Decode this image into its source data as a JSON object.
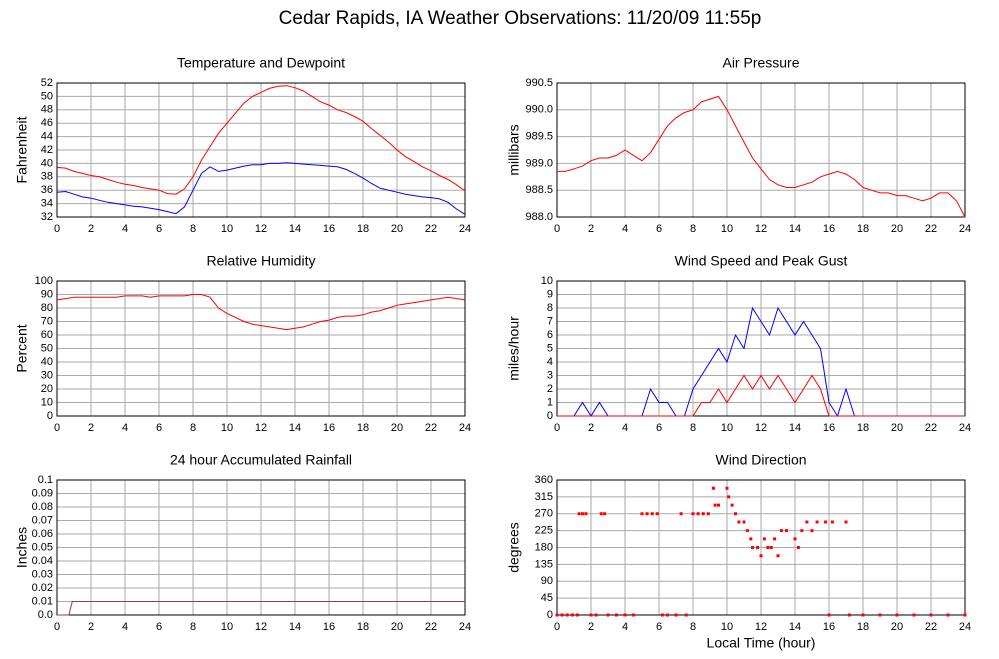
{
  "title": "Cedar Rapids, IA Weather Observations: 11/20/09 11:55p",
  "chart_data": [
    {
      "type": "line",
      "title": "Temperature and Dewpoint",
      "ylabel": "Fahrenheit",
      "x": [
        0,
        0.5,
        1,
        1.5,
        2,
        2.5,
        3,
        3.5,
        4,
        4.5,
        5,
        5.5,
        6,
        6.5,
        7,
        7.5,
        8,
        8.5,
        9,
        9.5,
        10,
        10.5,
        11,
        11.5,
        12,
        12.5,
        13,
        13.5,
        14,
        14.5,
        15,
        15.5,
        16,
        16.5,
        17,
        17.5,
        18,
        18.5,
        19,
        19.5,
        20,
        20.5,
        21,
        21.5,
        22,
        22.5,
        23,
        23.5,
        24
      ],
      "series": [
        {
          "color": "#ff0000",
          "values": [
            39.4,
            39.3,
            38.8,
            38.5,
            38.2,
            38,
            37.6,
            37.2,
            36.9,
            36.7,
            36.4,
            36.2,
            36,
            35.5,
            35.4,
            36.2,
            38,
            40.5,
            42.5,
            44.5,
            46,
            47.5,
            49,
            50,
            50.6,
            51.2,
            51.5,
            51.6,
            51.3,
            50.8,
            50,
            49.2,
            48.7,
            48,
            47.6,
            47,
            46.3,
            45.2,
            44.2,
            43.2,
            42,
            41,
            40.3,
            39.5,
            38.9,
            38.2,
            37.6,
            36.8,
            35.9
          ]
        },
        {
          "color": "#0000ff",
          "values": [
            35.7,
            35.8,
            35.4,
            35,
            34.8,
            34.5,
            34.2,
            34,
            33.8,
            33.6,
            33.5,
            33.3,
            33.1,
            32.8,
            32.5,
            33.5,
            36,
            38.5,
            39.5,
            38.8,
            39,
            39.3,
            39.6,
            39.8,
            39.8,
            40,
            40,
            40.1,
            40,
            39.9,
            39.8,
            39.7,
            39.6,
            39.5,
            39.1,
            38.5,
            37.8,
            37,
            36.3,
            36,
            35.7,
            35.4,
            35.2,
            35,
            34.9,
            34.7,
            34.2,
            33.2,
            32.4
          ]
        }
      ],
      "xlim": [
        0,
        24
      ],
      "xticks": [
        0,
        2,
        4,
        6,
        8,
        10,
        12,
        14,
        16,
        18,
        20,
        22,
        24
      ],
      "ylim": [
        32,
        52
      ],
      "yticks": [
        32,
        34,
        36,
        38,
        40,
        42,
        44,
        46,
        48,
        50,
        52
      ],
      "grid": true
    },
    {
      "type": "line",
      "title": "Air Pressure",
      "ylabel": "millibars",
      "x": [
        0,
        0.5,
        1,
        1.5,
        2,
        2.5,
        3,
        3.5,
        4,
        4.5,
        5,
        5.5,
        6,
        6.5,
        7,
        7.5,
        8,
        8.5,
        9,
        9.5,
        10,
        10.5,
        11,
        11.5,
        12,
        12.5,
        13,
        13.5,
        14,
        14.5,
        15,
        15.5,
        16,
        16.5,
        17,
        17.5,
        18,
        18.5,
        19,
        19.5,
        20,
        20.5,
        21,
        21.5,
        22,
        22.5,
        23,
        23.5,
        24
      ],
      "series": [
        {
          "color": "#ff0000",
          "values": [
            988.85,
            988.85,
            988.9,
            988.95,
            989.05,
            989.1,
            989.1,
            989.15,
            989.25,
            989.15,
            989.05,
            989.2,
            989.45,
            989.7,
            989.85,
            989.95,
            990.0,
            990.15,
            990.2,
            990.25,
            990.0,
            989.7,
            989.4,
            989.1,
            988.9,
            988.7,
            988.6,
            988.55,
            988.55,
            988.6,
            988.65,
            988.75,
            988.8,
            988.85,
            988.8,
            988.7,
            988.55,
            988.5,
            988.45,
            988.45,
            988.4,
            988.4,
            988.35,
            988.3,
            988.35,
            988.45,
            988.45,
            988.3,
            988.0
          ]
        }
      ],
      "xlim": [
        0,
        24
      ],
      "xticks": [
        0,
        2,
        4,
        6,
        8,
        10,
        12,
        14,
        16,
        18,
        20,
        22,
        24
      ],
      "ylim": [
        988.0,
        990.5
      ],
      "yticks": [
        {
          "value": 988,
          "label": "988.0"
        },
        988.5,
        {
          "value": 989,
          "label": "989.0"
        },
        989.5,
        {
          "value": 990,
          "label": "990.0"
        },
        990.5
      ],
      "grid": true
    },
    {
      "type": "line",
      "title": "Relative Humidity",
      "ylabel": "Percent",
      "x": [
        0,
        0.5,
        1,
        1.5,
        2,
        2.5,
        3,
        3.5,
        4,
        4.5,
        5,
        5.5,
        6,
        6.5,
        7,
        7.5,
        8,
        8.5,
        9,
        9.5,
        10,
        10.5,
        11,
        11.5,
        12,
        12.5,
        13,
        13.5,
        14,
        14.5,
        15,
        15.5,
        16,
        16.5,
        17,
        17.5,
        18,
        18.5,
        19,
        19.5,
        20,
        20.5,
        21,
        21.5,
        22,
        22.5,
        23,
        23.5,
        24
      ],
      "series": [
        {
          "color": "#ff0000",
          "values": [
            86,
            87,
            88,
            88,
            88,
            88,
            88,
            88,
            89,
            89,
            89,
            88,
            89,
            89,
            89,
            89,
            90,
            90,
            88,
            80,
            76,
            73,
            70,
            68,
            67,
            66,
            65,
            64,
            65,
            66,
            68,
            70,
            71,
            73,
            74,
            74,
            75,
            77,
            78,
            80,
            82,
            83,
            84,
            85,
            86,
            87,
            88,
            87,
            86
          ]
        }
      ],
      "xlim": [
        0,
        24
      ],
      "xticks": [
        0,
        2,
        4,
        6,
        8,
        10,
        12,
        14,
        16,
        18,
        20,
        22,
        24
      ],
      "ylim": [
        0,
        100
      ],
      "yticks": [
        0,
        10,
        20,
        30,
        40,
        50,
        60,
        70,
        80,
        90,
        100
      ],
      "grid": true
    },
    {
      "type": "line",
      "title": "Wind Speed and Peak Gust",
      "ylabel": "miles/hour",
      "x": [
        0,
        0.5,
        1,
        1.5,
        2,
        2.5,
        3,
        3.5,
        4,
        4.5,
        5,
        5.5,
        6,
        6.5,
        7,
        7.5,
        8,
        8.5,
        9,
        9.5,
        10,
        10.5,
        11,
        11.5,
        12,
        12.5,
        13,
        13.5,
        14,
        14.5,
        15,
        15.5,
        16,
        16.5,
        17,
        17.5,
        18,
        18.5,
        19,
        19.5,
        20,
        20.5,
        21,
        21.5,
        22,
        22.5,
        23,
        23.5,
        24
      ],
      "series": [
        {
          "color": "#0000ff",
          "values": [
            0,
            0,
            0,
            1,
            0,
            1,
            0,
            0,
            0,
            0,
            0,
            2,
            1,
            1,
            0,
            0,
            2,
            3,
            4,
            5,
            4,
            6,
            5,
            8,
            7,
            6,
            8,
            7,
            6,
            7,
            6,
            5,
            1,
            0,
            2,
            0,
            0,
            0,
            0,
            0,
            0,
            0,
            0,
            0,
            0,
            0,
            0,
            0,
            0
          ]
        },
        {
          "color": "#ff0000",
          "values": [
            0,
            0,
            0,
            0,
            0,
            0,
            0,
            0,
            0,
            0,
            0,
            0,
            0,
            0,
            0,
            0,
            0,
            1,
            1,
            2,
            1,
            2,
            3,
            2,
            3,
            2,
            3,
            2,
            1,
            2,
            3,
            2,
            0,
            0,
            0,
            0,
            0,
            0,
            0,
            0,
            0,
            0,
            0,
            0,
            0,
            0,
            0,
            0,
            0
          ]
        }
      ],
      "xlim": [
        0,
        24
      ],
      "xticks": [
        0,
        2,
        4,
        6,
        8,
        10,
        12,
        14,
        16,
        18,
        20,
        22,
        24
      ],
      "ylim": [
        0,
        10
      ],
      "yticks": [
        0,
        1,
        2,
        3,
        4,
        5,
        6,
        7,
        8,
        9,
        10
      ],
      "grid": true
    },
    {
      "type": "line",
      "title": "24 hour Accumulated Rainfall",
      "ylabel": "Inches",
      "x": [
        0,
        0.7,
        0.9,
        24
      ],
      "series": [
        {
          "color": "#993366",
          "values": [
            0,
            0,
            0.01,
            0.01
          ]
        }
      ],
      "xlim": [
        0,
        24
      ],
      "xticks": [
        0,
        2,
        4,
        6,
        8,
        10,
        12,
        14,
        16,
        18,
        20,
        22,
        24
      ],
      "ylim": [
        0,
        0.1
      ],
      "yticks": [
        {
          "value": 0,
          "label": "0.0"
        },
        0.01,
        0.02,
        0.03,
        0.04,
        0.05,
        0.06,
        0.07,
        0.08,
        0.09,
        0.1
      ],
      "grid": true
    },
    {
      "type": "scatter",
      "title": "Wind Direction",
      "ylabel": "degrees",
      "xlabel": "Local Time (hour)",
      "color": "#ff0000",
      "x": [
        0,
        0.3,
        0.6,
        0.9,
        1.2,
        1.3,
        1.5,
        1.7,
        2,
        2.3,
        2.6,
        2.8,
        3,
        3.5,
        4,
        4.5,
        5,
        5.3,
        5.6,
        5.9,
        6.2,
        6.5,
        7,
        7.3,
        7.6,
        8,
        8.3,
        8.6,
        8.9,
        9.2,
        9.3,
        9.5,
        10,
        10.1,
        10.3,
        10.5,
        10.7,
        11,
        11.2,
        11.4,
        11.5,
        11.8,
        12,
        12.2,
        12.4,
        12.6,
        12.8,
        13,
        13.2,
        13.5,
        14,
        14.2,
        14.4,
        14.7,
        15,
        15.3,
        15.8,
        16,
        16.2,
        17,
        17.2,
        18,
        19,
        20,
        21,
        22,
        23,
        24
      ],
      "values": [
        0,
        0,
        0,
        0,
        0,
        270,
        270,
        270,
        0,
        0,
        270,
        270,
        0,
        0,
        0,
        0,
        270,
        270,
        270,
        270,
        0,
        0,
        0,
        270,
        0,
        270,
        270,
        270,
        270,
        338,
        293,
        293,
        338,
        315,
        293,
        270,
        248,
        248,
        225,
        203,
        180,
        180,
        158,
        203,
        180,
        180,
        203,
        158,
        225,
        225,
        203,
        180,
        225,
        248,
        225,
        248,
        248,
        0,
        248,
        248,
        0,
        0,
        0,
        0,
        0,
        0,
        0,
        0
      ],
      "xlim": [
        0,
        24
      ],
      "xticks": [
        0,
        2,
        4,
        6,
        8,
        10,
        12,
        14,
        16,
        18,
        20,
        22,
        24
      ],
      "ylim": [
        0,
        360
      ],
      "yticks": [
        0,
        45,
        90,
        135,
        180,
        225,
        270,
        315,
        360
      ],
      "grid": true
    }
  ]
}
